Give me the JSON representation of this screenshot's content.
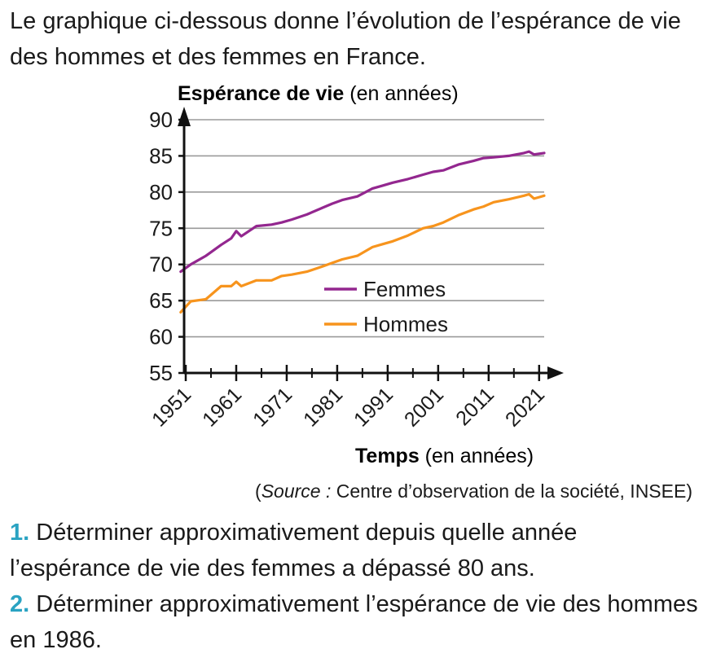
{
  "intro": "Le graphique ci-dessous donne l’évolution de l’espérance de vie des hommes et des femmes en France.",
  "chart_data": {
    "type": "line",
    "ylabel_bold": "Espérance de vie",
    "ylabel_rest": " (en années)",
    "xlabel_bold": "Temps",
    "xlabel_rest": " (en années)",
    "ylim": [
      55,
      90
    ],
    "xlim": [
      1951,
      2022
    ],
    "yticks": [
      55,
      60,
      65,
      70,
      75,
      80,
      85,
      90
    ],
    "xticks": [
      1951,
      1961,
      1971,
      1981,
      1991,
      2001,
      2011,
      2021
    ],
    "grid": true,
    "legend_position": "center",
    "series": [
      {
        "name": "Femmes",
        "color": "#93278f",
        "x": [
          1950,
          1952,
          1955,
          1958,
          1960,
          1961,
          1962,
          1965,
          1968,
          1970,
          1972,
          1975,
          1978,
          1980,
          1982,
          1985,
          1988,
          1990,
          1992,
          1995,
          1998,
          2000,
          2002,
          2005,
          2008,
          2010,
          2012,
          2015,
          2018,
          2019,
          2020,
          2021,
          2022
        ],
        "y": [
          69.0,
          70.0,
          71.2,
          72.7,
          73.6,
          74.6,
          73.9,
          75.3,
          75.5,
          75.8,
          76.2,
          76.9,
          77.8,
          78.4,
          78.9,
          79.4,
          80.5,
          80.9,
          81.3,
          81.8,
          82.4,
          82.8,
          83.0,
          83.8,
          84.3,
          84.7,
          84.8,
          85.0,
          85.4,
          85.6,
          85.2,
          85.3,
          85.4
        ]
      },
      {
        "name": "Hommes",
        "color": "#f7941d",
        "x": [
          1950,
          1952,
          1955,
          1958,
          1960,
          1961,
          1962,
          1965,
          1968,
          1970,
          1972,
          1975,
          1978,
          1980,
          1982,
          1985,
          1988,
          1990,
          1992,
          1995,
          1998,
          2000,
          2002,
          2005,
          2008,
          2010,
          2012,
          2015,
          2018,
          2019,
          2020,
          2021,
          2022
        ],
        "y": [
          63.4,
          64.9,
          65.2,
          67.0,
          67.0,
          67.6,
          67.0,
          67.8,
          67.8,
          68.4,
          68.6,
          69.0,
          69.7,
          70.2,
          70.7,
          71.2,
          72.4,
          72.8,
          73.2,
          74.0,
          75.0,
          75.3,
          75.8,
          76.8,
          77.6,
          78.0,
          78.6,
          79.0,
          79.5,
          79.7,
          79.1,
          79.3,
          79.5
        ]
      }
    ]
  },
  "source_prefix": "(",
  "source_label": "Source :",
  "source_text": " Centre d’observation de la société, INSEE)",
  "questions": [
    {
      "num": "1.",
      "text": " Déterminer approximativement depuis quelle année l’espérance de vie des femmes a dépassé 80 ans."
    },
    {
      "num": "2.",
      "text": " Déterminer approximativement l’espérance de vie des hommes en 1986."
    }
  ]
}
